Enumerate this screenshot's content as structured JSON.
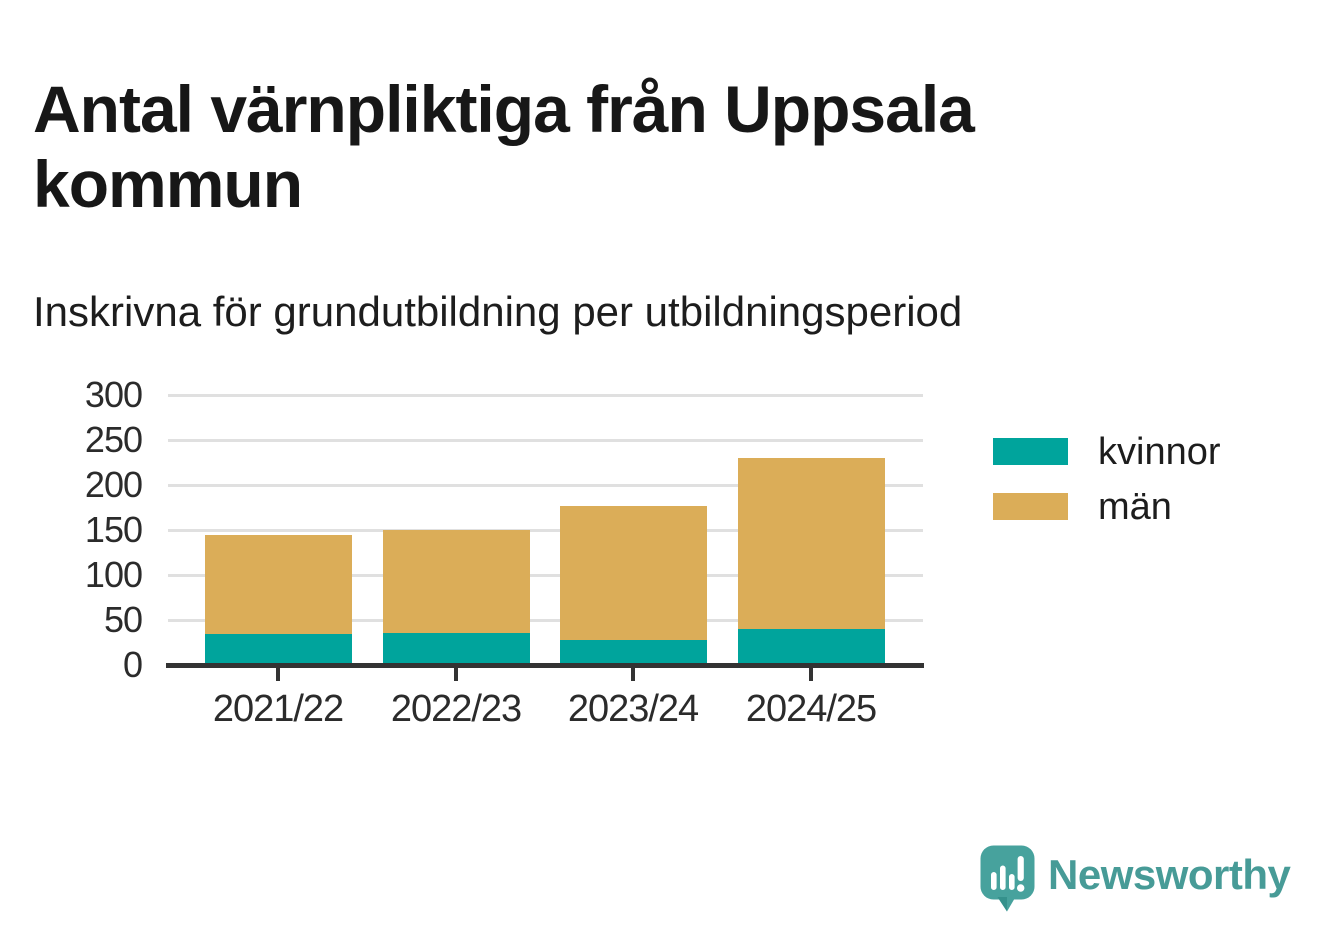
{
  "header": {
    "title": "Antal värnpliktiga från Uppsala kommun",
    "subtitle": "Inskrivna för grundutbildning per utbildningsperiod"
  },
  "chart_data": {
    "type": "bar",
    "stacked": true,
    "title": "Antal värnpliktiga från Uppsala kommun",
    "subtitle": "Inskrivna för grundutbildning per utbildningsperiod",
    "categories": [
      "2021/22",
      "2022/23",
      "2023/24",
      "2024/25"
    ],
    "series": [
      {
        "name": "kvinnor",
        "color": "#00A49C",
        "values": [
          34,
          36,
          28,
          40
        ]
      },
      {
        "name": "män",
        "color": "#DBAD58",
        "values": [
          111,
          114,
          149,
          190
        ]
      }
    ],
    "stacked_totals": [
      145,
      150,
      177,
      230
    ],
    "xlabel": "",
    "ylabel": "",
    "ylim": [
      0,
      300
    ],
    "yticks": [
      0,
      50,
      100,
      150,
      200,
      250,
      300
    ],
    "grid": true,
    "legend_position": "right-of-plot"
  },
  "legend": {
    "items": [
      {
        "label": "kvinnor",
        "color": "#00A49C"
      },
      {
        "label": "män",
        "color": "#DBAD58"
      }
    ]
  },
  "branding": {
    "name": "Newsworthy",
    "logo_icon": "newsworthy-speech-bubble-bars-icon",
    "color": "#479B97"
  },
  "palette": {
    "background": "#FFFFFF",
    "text": "#171717",
    "axis": "#333333",
    "gridline": "#E0E0E0"
  }
}
